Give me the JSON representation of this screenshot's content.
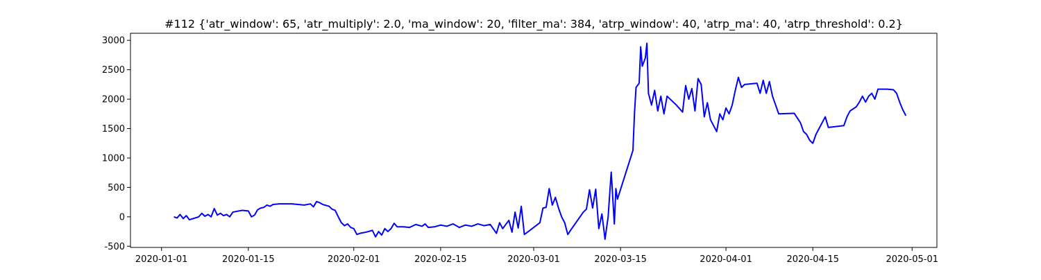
{
  "chart_data": {
    "type": "line",
    "title": "#112 {'atr_window': 65, 'atr_multiply': 2.0, 'ma_window': 20, 'filter_ma': 384, 'atrp_window': 40, 'atrp_ma': 40, 'atrp_threshold': 0.2}",
    "xlabel": "",
    "ylabel": "",
    "x_ticks": [
      "2020-01-01",
      "2020-01-15",
      "2020-02-01",
      "2020-02-15",
      "2020-03-01",
      "2020-03-15",
      "2020-04-01",
      "2020-04-15",
      "2020-05-01"
    ],
    "y_ticks": [
      -500,
      0,
      500,
      1000,
      1500,
      2000,
      2500,
      3000
    ],
    "xlim": [
      "2019-12-27",
      "2020-05-05"
    ],
    "ylim": [
      -520,
      3120
    ],
    "grid": false,
    "legend": "none",
    "series": [
      {
        "color": "#0000ff",
        "points": [
          [
            "2020-01-03",
            0
          ],
          [
            "2020-01-03T12:00",
            -20
          ],
          [
            "2020-01-04",
            40
          ],
          [
            "2020-01-04T12:00",
            -30
          ],
          [
            "2020-01-05",
            20
          ],
          [
            "2020-01-05T12:00",
            -50
          ],
          [
            "2020-01-07",
            0
          ],
          [
            "2020-01-07T12:00",
            60
          ],
          [
            "2020-01-08",
            10
          ],
          [
            "2020-01-08T12:00",
            40
          ],
          [
            "2020-01-09",
            0
          ],
          [
            "2020-01-09T12:00",
            140
          ],
          [
            "2020-01-10",
            30
          ],
          [
            "2020-01-10T12:00",
            60
          ],
          [
            "2020-01-11",
            20
          ],
          [
            "2020-01-11T12:00",
            40
          ],
          [
            "2020-01-12",
            0
          ],
          [
            "2020-01-12T12:00",
            80
          ],
          [
            "2020-01-14",
            110
          ],
          [
            "2020-01-15",
            100
          ],
          [
            "2020-01-15T12:00",
            0
          ],
          [
            "2020-01-16",
            30
          ],
          [
            "2020-01-16T12:00",
            120
          ],
          [
            "2020-01-17",
            150
          ],
          [
            "2020-01-17T12:00",
            160
          ],
          [
            "2020-01-18",
            200
          ],
          [
            "2020-01-18T12:00",
            180
          ],
          [
            "2020-01-19",
            210
          ],
          [
            "2020-01-20",
            220
          ],
          [
            "2020-01-22",
            220
          ],
          [
            "2020-01-23",
            210
          ],
          [
            "2020-01-24",
            200
          ],
          [
            "2020-01-25",
            220
          ],
          [
            "2020-01-25T12:00",
            170
          ],
          [
            "2020-01-26",
            260
          ],
          [
            "2020-01-26T12:00",
            240
          ],
          [
            "2020-01-27",
            210
          ],
          [
            "2020-01-28",
            180
          ],
          [
            "2020-01-28T12:00",
            130
          ],
          [
            "2020-01-29",
            110
          ],
          [
            "2020-01-29T12:00",
            0
          ],
          [
            "2020-01-30",
            -100
          ],
          [
            "2020-01-30T12:00",
            -150
          ],
          [
            "2020-01-31",
            -120
          ],
          [
            "2020-01-31T12:00",
            -180
          ],
          [
            "2020-02-01",
            -200
          ],
          [
            "2020-02-01T12:00",
            -300
          ],
          [
            "2020-02-02",
            -280
          ],
          [
            "2020-02-03",
            -260
          ],
          [
            "2020-02-04",
            -230
          ],
          [
            "2020-02-04T12:00",
            -340
          ],
          [
            "2020-02-05",
            -250
          ],
          [
            "2020-02-05T12:00",
            -310
          ],
          [
            "2020-02-06",
            -200
          ],
          [
            "2020-02-06T12:00",
            -250
          ],
          [
            "2020-02-07",
            -200
          ],
          [
            "2020-02-07T12:00",
            -110
          ],
          [
            "2020-02-08",
            -170
          ],
          [
            "2020-02-09",
            -170
          ],
          [
            "2020-02-10",
            -180
          ],
          [
            "2020-02-11",
            -130
          ],
          [
            "2020-02-12",
            -160
          ],
          [
            "2020-02-12T12:00",
            -120
          ],
          [
            "2020-02-13",
            -180
          ],
          [
            "2020-02-14",
            -170
          ],
          [
            "2020-02-15",
            -140
          ],
          [
            "2020-02-16",
            -160
          ],
          [
            "2020-02-17",
            -120
          ],
          [
            "2020-02-18",
            -180
          ],
          [
            "2020-02-19",
            -140
          ],
          [
            "2020-02-20",
            -160
          ],
          [
            "2020-02-21",
            -120
          ],
          [
            "2020-02-22",
            -150
          ],
          [
            "2020-02-23",
            -130
          ],
          [
            "2020-02-24",
            -280
          ],
          [
            "2020-02-24T12:00",
            -100
          ],
          [
            "2020-02-25",
            -200
          ],
          [
            "2020-02-26",
            -60
          ],
          [
            "2020-02-26T12:00",
            -260
          ],
          [
            "2020-02-27",
            80
          ],
          [
            "2020-02-27T12:00",
            -190
          ],
          [
            "2020-02-28",
            180
          ],
          [
            "2020-02-28T12:00",
            -300
          ],
          [
            "2020-03-02",
            -100
          ],
          [
            "2020-03-02T12:00",
            150
          ],
          [
            "2020-03-03",
            160
          ],
          [
            "2020-03-03T12:00",
            480
          ],
          [
            "2020-03-04",
            200
          ],
          [
            "2020-03-04T12:00",
            330
          ],
          [
            "2020-03-05",
            150
          ],
          [
            "2020-03-05T12:00",
            0
          ],
          [
            "2020-03-06",
            -100
          ],
          [
            "2020-03-06T12:00",
            -300
          ],
          [
            "2020-03-07",
            -220
          ],
          [
            "2020-03-09",
            80
          ],
          [
            "2020-03-09T12:00",
            130
          ],
          [
            "2020-03-10",
            460
          ],
          [
            "2020-03-10T12:00",
            150
          ],
          [
            "2020-03-11",
            470
          ],
          [
            "2020-03-11T12:00",
            -200
          ],
          [
            "2020-03-12",
            50
          ],
          [
            "2020-03-12T12:00",
            -380
          ],
          [
            "2020-03-13",
            0
          ],
          [
            "2020-03-13T12:00",
            760
          ],
          [
            "2020-03-14",
            -120
          ],
          [
            "2020-03-14T06:00",
            480
          ],
          [
            "2020-03-14T12:00",
            300
          ],
          [
            "2020-03-17",
            1130
          ],
          [
            "2020-03-17T06:00",
            1760
          ],
          [
            "2020-03-17T12:00",
            2200
          ],
          [
            "2020-03-18",
            2270
          ],
          [
            "2020-03-18T06:00",
            2890
          ],
          [
            "2020-03-18T12:00",
            2560
          ],
          [
            "2020-03-19",
            2700
          ],
          [
            "2020-03-19T06:00",
            2950
          ],
          [
            "2020-03-19T12:00",
            2100
          ],
          [
            "2020-03-20",
            1900
          ],
          [
            "2020-03-20T12:00",
            2150
          ],
          [
            "2020-03-21",
            1800
          ],
          [
            "2020-03-21T12:00",
            2050
          ],
          [
            "2020-03-22",
            1750
          ],
          [
            "2020-03-22T12:00",
            2050
          ],
          [
            "2020-03-24",
            1900
          ],
          [
            "2020-03-25",
            1780
          ],
          [
            "2020-03-25T12:00",
            2230
          ],
          [
            "2020-03-26",
            2000
          ],
          [
            "2020-03-26T12:00",
            2180
          ],
          [
            "2020-03-27",
            1800
          ],
          [
            "2020-03-27T12:00",
            2350
          ],
          [
            "2020-03-28",
            2250
          ],
          [
            "2020-03-28T12:00",
            1700
          ],
          [
            "2020-03-29",
            1940
          ],
          [
            "2020-03-29T12:00",
            1650
          ],
          [
            "2020-03-30",
            1550
          ],
          [
            "2020-03-30T12:00",
            1450
          ],
          [
            "2020-03-31",
            1750
          ],
          [
            "2020-03-31T12:00",
            1650
          ],
          [
            "2020-04-01",
            1850
          ],
          [
            "2020-04-01T12:00",
            1750
          ],
          [
            "2020-04-02",
            1900
          ],
          [
            "2020-04-02T12:00",
            2150
          ],
          [
            "2020-04-03",
            2370
          ],
          [
            "2020-04-03T12:00",
            2200
          ],
          [
            "2020-04-04",
            2250
          ],
          [
            "2020-04-06",
            2270
          ],
          [
            "2020-04-06T12:00",
            2100
          ],
          [
            "2020-04-07",
            2320
          ],
          [
            "2020-04-07T12:00",
            2100
          ],
          [
            "2020-04-08",
            2300
          ],
          [
            "2020-04-08T12:00",
            2050
          ],
          [
            "2020-04-09",
            1900
          ],
          [
            "2020-04-09T12:00",
            1750
          ],
          [
            "2020-04-12",
            1760
          ],
          [
            "2020-04-13",
            1600
          ],
          [
            "2020-04-13T12:00",
            1450
          ],
          [
            "2020-04-14",
            1400
          ],
          [
            "2020-04-14T12:00",
            1300
          ],
          [
            "2020-04-15",
            1250
          ],
          [
            "2020-04-15T12:00",
            1400
          ],
          [
            "2020-04-16",
            1500
          ],
          [
            "2020-04-16T12:00",
            1600
          ],
          [
            "2020-04-17",
            1700
          ],
          [
            "2020-04-17T12:00",
            1520
          ],
          [
            "2020-04-20",
            1550
          ],
          [
            "2020-04-20T12:00",
            1700
          ],
          [
            "2020-04-21",
            1800
          ],
          [
            "2020-04-22",
            1870
          ],
          [
            "2020-04-22T12:00",
            1950
          ],
          [
            "2020-04-23",
            2050
          ],
          [
            "2020-04-23T12:00",
            1950
          ],
          [
            "2020-04-24",
            2050
          ],
          [
            "2020-04-24T12:00",
            2100
          ],
          [
            "2020-04-25",
            2000
          ],
          [
            "2020-04-25T12:00",
            2170
          ],
          [
            "2020-04-27",
            2170
          ],
          [
            "2020-04-28",
            2160
          ],
          [
            "2020-04-28T12:00",
            2100
          ],
          [
            "2020-04-29",
            1950
          ],
          [
            "2020-04-29T12:00",
            1820
          ],
          [
            "2020-04-30",
            1720
          ]
        ]
      }
    ]
  }
}
